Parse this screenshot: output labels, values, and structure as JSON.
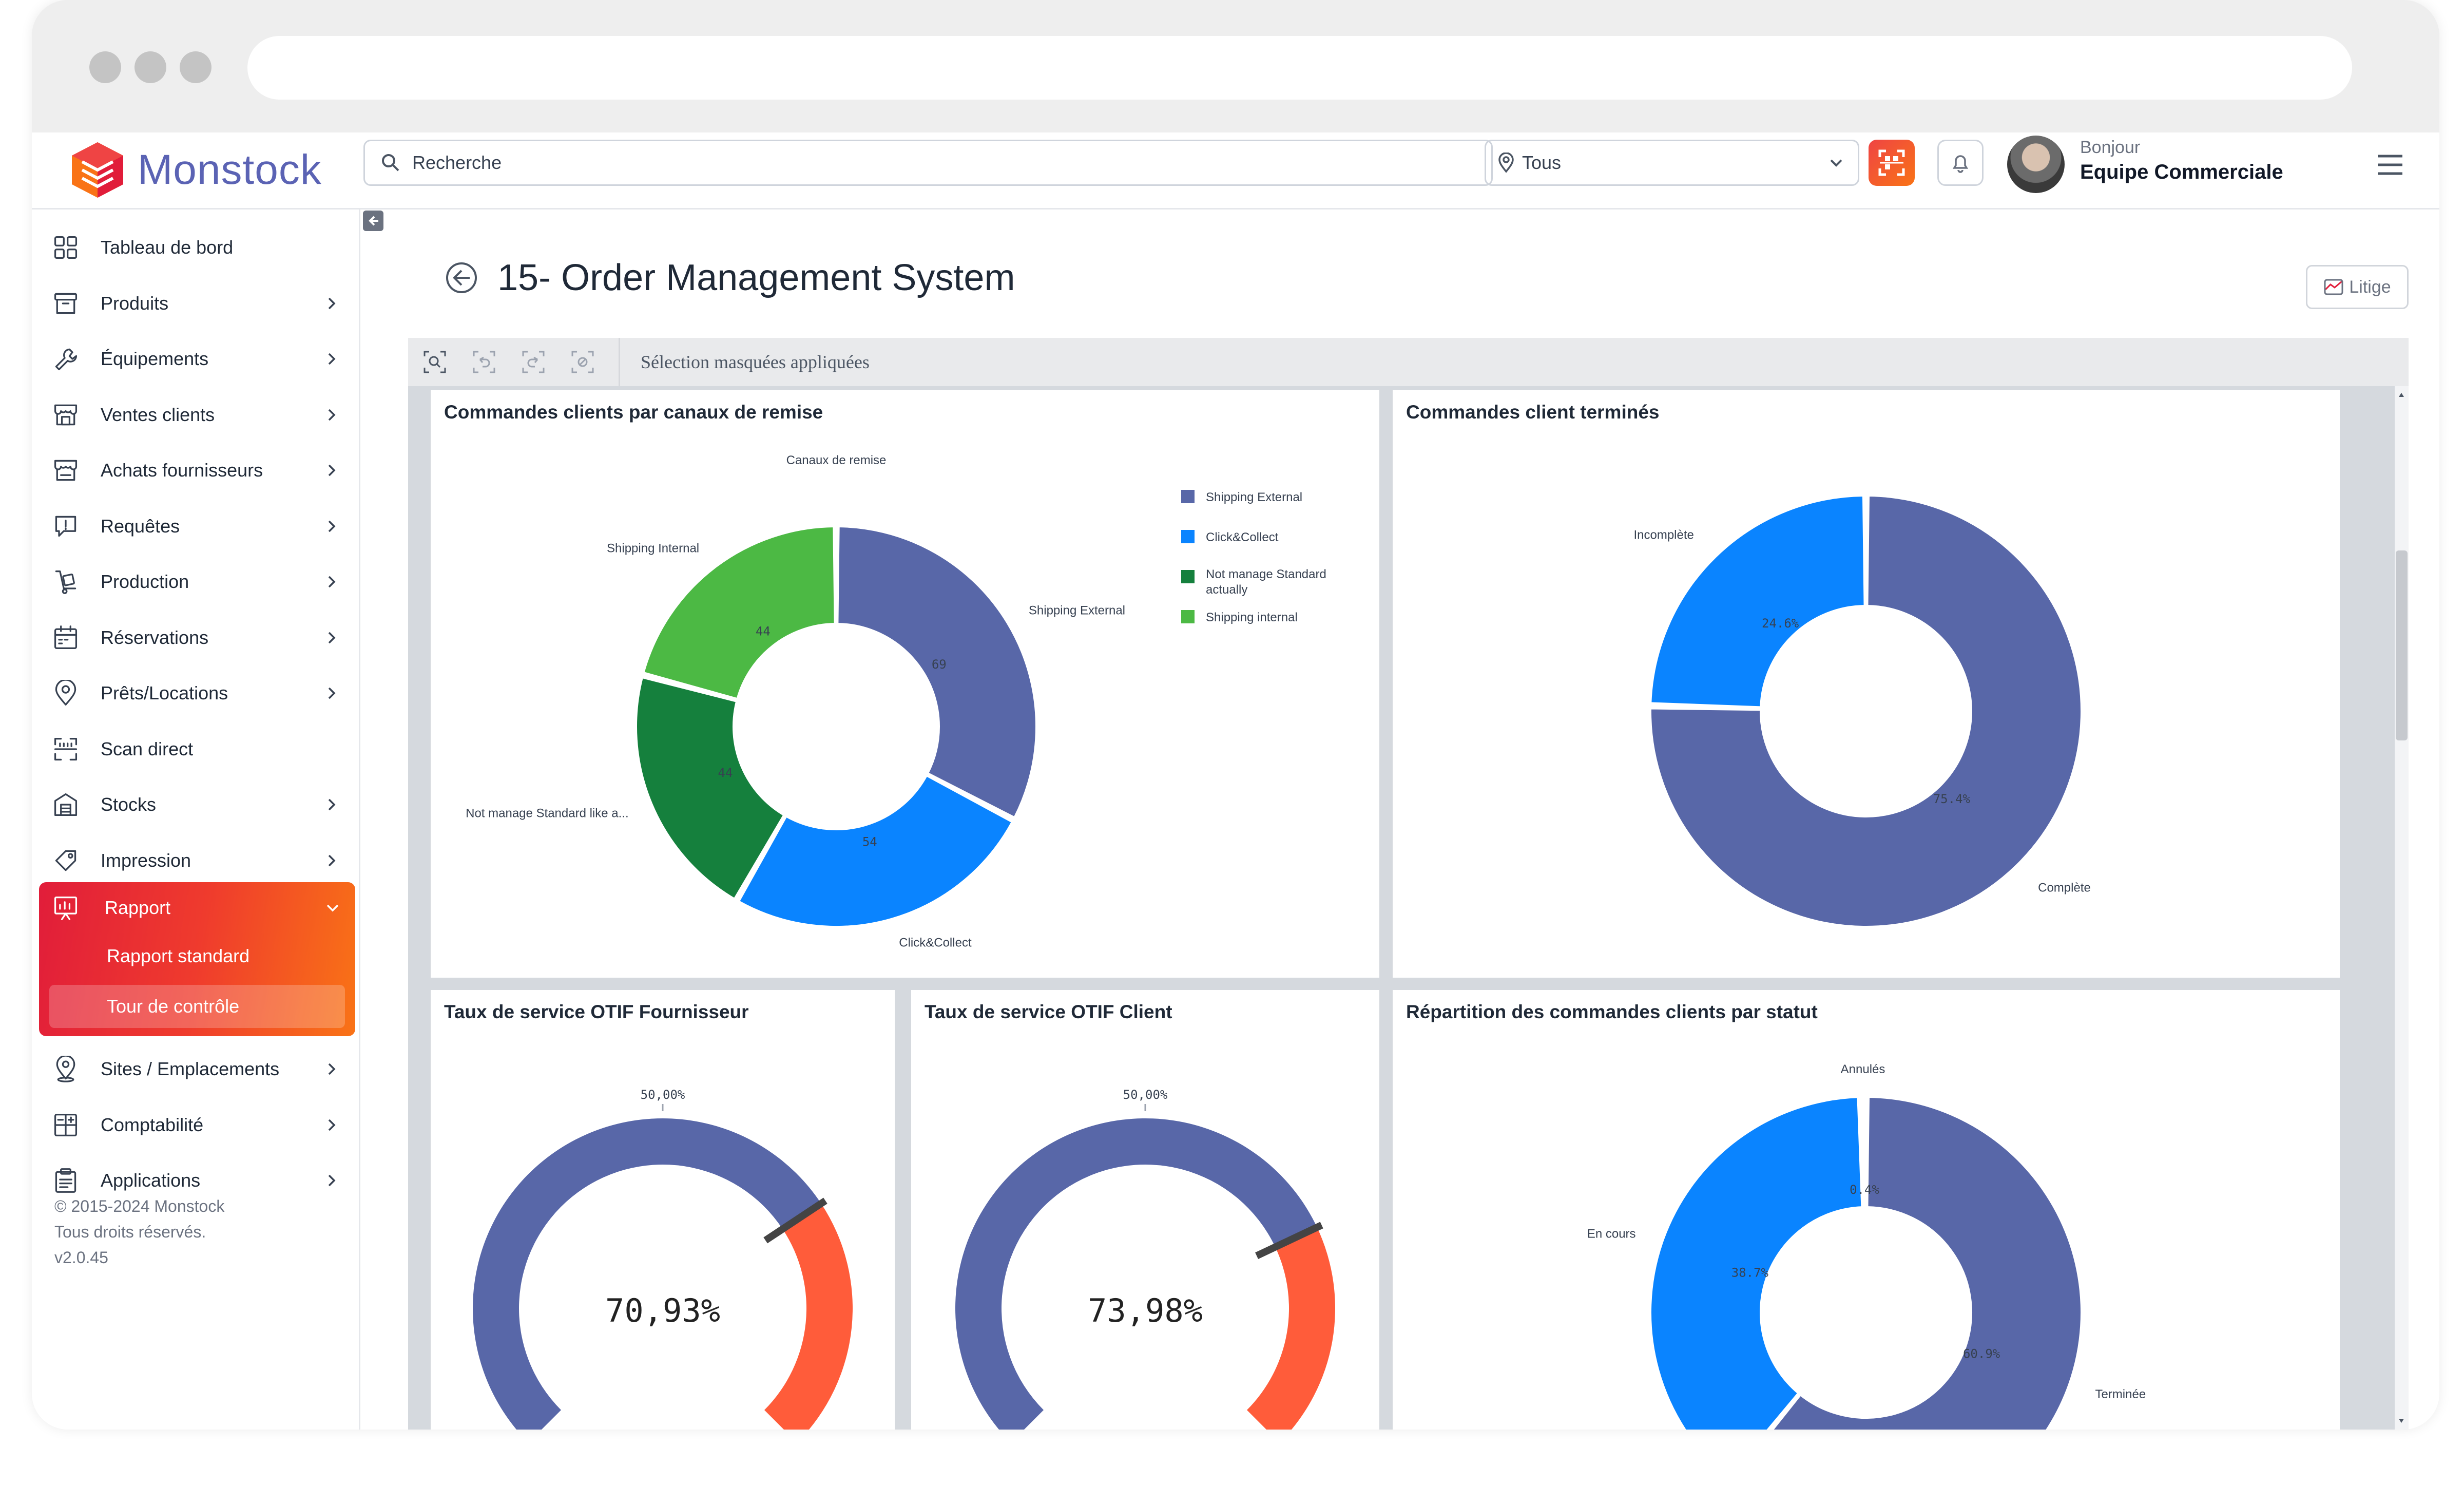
{
  "app": {
    "brand": "Monstock"
  },
  "header": {
    "search_placeholder": "Recherche",
    "location": "Tous",
    "greeting": "Bonjour",
    "user_name": "Equipe Commerciale"
  },
  "sidebar": {
    "items": [
      {
        "label": "Tableau de bord",
        "icon": "dashboard-icon",
        "arrow": false
      },
      {
        "label": "Produits",
        "icon": "box-icon",
        "arrow": true
      },
      {
        "label": "Équipements",
        "icon": "wrench-icon",
        "arrow": true
      },
      {
        "label": "Ventes clients",
        "icon": "store-icon",
        "arrow": true
      },
      {
        "label": "Achats fournisseurs",
        "icon": "cart-icon",
        "arrow": true
      },
      {
        "label": "Requêtes",
        "icon": "message-alert-icon",
        "arrow": true
      },
      {
        "label": "Production",
        "icon": "trolley-icon",
        "arrow": true
      },
      {
        "label": "Réservations",
        "icon": "calendar-icon",
        "arrow": true
      },
      {
        "label": "Prêts/Locations",
        "icon": "map-pin-icon",
        "arrow": true
      },
      {
        "label": "Scan direct",
        "icon": "scan-icon",
        "arrow": false
      },
      {
        "label": "Stocks",
        "icon": "warehouse-icon",
        "arrow": true
      },
      {
        "label": "Impression",
        "icon": "tag-icon",
        "arrow": true
      }
    ],
    "rapport": {
      "label": "Rapport",
      "children": [
        "Rapport standard",
        "Tour de contrôle"
      ]
    },
    "items_after": [
      {
        "label": "Sites / Emplacements",
        "icon": "location-pin-icon",
        "arrow": true
      },
      {
        "label": "Comptabilité",
        "icon": "accounting-icon",
        "arrow": true
      },
      {
        "label": "Applications",
        "icon": "clipboard-icon",
        "arrow": true
      }
    ],
    "copyright": [
      "© 2015-2024 Monstock",
      "Tous droits réservés.",
      "v2.0.45"
    ]
  },
  "main": {
    "title": "15- Order Management System",
    "litige_label": "Litige",
    "toolbar_selection": "Sélection masquées appliquées"
  },
  "colors": {
    "primary": "#5867a8",
    "blue": "#0a84ff",
    "dark_green": "#15803d",
    "light_green": "#4cb944",
    "orange": "#ff5c3a",
    "accent_red": "#e11d3a",
    "accent_orange": "#f97316"
  },
  "chart_data": [
    {
      "type": "pie",
      "title": "Commandes clients par canaux de remise",
      "subtitle": "Canaux de remise",
      "categories": [
        "Shipping External",
        "Click&Collect",
        "Not manage Standard like a...",
        "Shipping Internal"
      ],
      "values": [
        69,
        54,
        44,
        44
      ],
      "legend": [
        "Shipping External",
        "Click&Collect",
        "Not manage Standard actually",
        "Shipping internal"
      ],
      "legend_position": "right"
    },
    {
      "type": "pie",
      "title": "Commandes client terminés",
      "categories": [
        "Complète",
        "Incomplète"
      ],
      "values": [
        75.4,
        24.6
      ],
      "value_labels": [
        "75.4%",
        "24.6%"
      ]
    },
    {
      "type": "gauge",
      "title": "Taux de service OTIF Fournisseur",
      "value": 70.93,
      "value_label": "70,93%",
      "target": 50,
      "target_label": "50,00%"
    },
    {
      "type": "gauge",
      "title": "Taux de service OTIF Client",
      "value": 73.98,
      "value_label": "73,98%",
      "target": 50,
      "target_label": "50,00%"
    },
    {
      "type": "pie",
      "title": "Répartition des commandes clients par statut",
      "categories": [
        "Terminée",
        "En cours",
        "Annulés"
      ],
      "values": [
        60.9,
        38.7,
        0.4
      ],
      "value_labels": [
        "60.9%",
        "38.7%",
        "0.4%"
      ]
    }
  ]
}
